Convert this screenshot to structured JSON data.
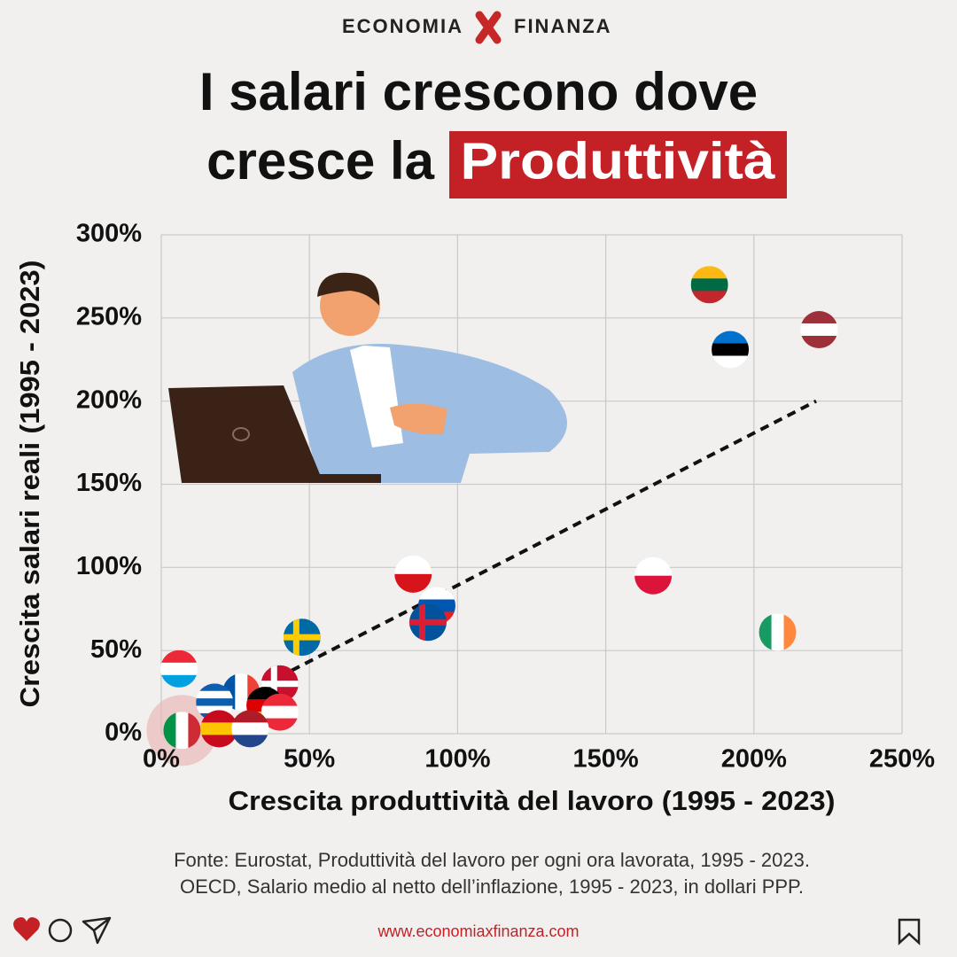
{
  "brand": {
    "left": "ECONOMIA",
    "right": "FINANZA"
  },
  "chart_data": {
    "type": "scatter",
    "title_lines": [
      "I salari crescono dove",
      "cresce la"
    ],
    "title_highlight": "Produttività",
    "xlabel": "Crescita produttività del lavoro (1995 - 2023)",
    "ylabel": "Crescita salari reali (1995 - 2023)",
    "xlim": [
      0,
      250
    ],
    "ylim": [
      0,
      300
    ],
    "xticks": [
      {
        "value": 0,
        "label": "0%"
      },
      {
        "value": 50,
        "label": "50%"
      },
      {
        "value": 100,
        "label": "100%"
      },
      {
        "value": 150,
        "label": "150%"
      },
      {
        "value": 200,
        "label": "200%"
      },
      {
        "value": 250,
        "label": "250%"
      }
    ],
    "yticks": [
      {
        "value": 0,
        "label": "0%"
      },
      {
        "value": 50,
        "label": "50%"
      },
      {
        "value": 100,
        "label": "100%"
      },
      {
        "value": 150,
        "label": "150%"
      },
      {
        "value": 200,
        "label": "200%"
      },
      {
        "value": 250,
        "label": "250%"
      },
      {
        "value": 300,
        "label": "300%"
      }
    ],
    "grid": true,
    "points": [
      {
        "x": 185,
        "y": 270,
        "stripes": "h",
        "colors": [
          "#fdb913",
          "#006a44",
          "#c1272d"
        ]
      },
      {
        "x": 222,
        "y": 243,
        "stripes": "h",
        "colors": [
          "#9e3039",
          "#ffffff",
          "#9e3039"
        ]
      },
      {
        "x": 192,
        "y": 231,
        "stripes": "h",
        "colors": [
          "#0072ce",
          "#000000",
          "#ffffff"
        ]
      },
      {
        "x": 166,
        "y": 95,
        "stripes": "h",
        "colors": [
          "#ffffff",
          "#dc143c"
        ]
      },
      {
        "x": 208,
        "y": 61,
        "stripes": "v",
        "colors": [
          "#169b62",
          "#ffffff",
          "#ff883e"
        ]
      },
      {
        "x": 85,
        "y": 96,
        "stripes": "h",
        "colors": [
          "#ffffff",
          "#d7141a"
        ]
      },
      {
        "x": 93,
        "y": 77,
        "stripes": "h",
        "colors": [
          "#ffffff",
          "#0056b3",
          "#ed1c24"
        ]
      },
      {
        "x": 90,
        "y": 67,
        "stripes": "h",
        "colors": [
          "#02529c"
        ],
        "cross": "#dc1e35"
      },
      {
        "x": 47.5,
        "y": 58,
        "stripes": "h",
        "colors": [
          "#006aa7"
        ],
        "cross": "#fecc00"
      },
      {
        "x": 6,
        "y": 39,
        "stripes": "h",
        "colors": [
          "#ed2939",
          "#ffffff",
          "#00a1de"
        ]
      },
      {
        "x": 40,
        "y": 30,
        "stripes": "h",
        "colors": [
          "#c8102e"
        ],
        "cross": "#ffffff"
      },
      {
        "x": 27,
        "y": 25,
        "stripes": "v",
        "colors": [
          "#0055a4",
          "#ffffff",
          "#ef4135"
        ]
      },
      {
        "x": 18,
        "y": 19,
        "stripes": "h",
        "colors": [
          "#0d5eaf",
          "#ffffff",
          "#0d5eaf",
          "#ffffff",
          "#0d5eaf"
        ]
      },
      {
        "x": 35,
        "y": 17,
        "stripes": "h",
        "colors": [
          "#000000",
          "#dd0000",
          "#ffce00"
        ]
      },
      {
        "x": 40,
        "y": 13,
        "stripes": "h",
        "colors": [
          "#ed2939",
          "#ffffff",
          "#ed2939"
        ]
      },
      {
        "x": 7,
        "y": 2,
        "stripes": "v",
        "colors": [
          "#009246",
          "#ffffff",
          "#ce2b37"
        ]
      },
      {
        "x": 19.5,
        "y": 3,
        "stripes": "h",
        "colors": [
          "#c60b1e",
          "#ffc400",
          "#c60b1e"
        ]
      },
      {
        "x": 30,
        "y": 3,
        "stripes": "h",
        "colors": [
          "#ae1c28",
          "#ffffff",
          "#21468b"
        ]
      }
    ],
    "trend_line": {
      "x": [
        44,
        221
      ],
      "y": [
        38,
        200
      ]
    },
    "source_lines": [
      "Fonte: Eurostat, Produttività del lavoro per ogni ora lavorata, 1995 - 2023.",
      "OECD, Salario medio al netto dell’inflazione, 1995 - 2023, in dollari PPP."
    ]
  },
  "footer": {
    "url": "www.economiaxfinanza.com"
  }
}
